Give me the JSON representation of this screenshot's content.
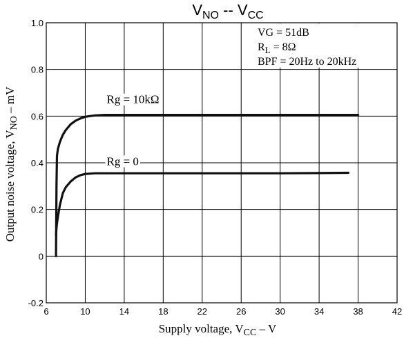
{
  "chart_data": {
    "type": "line",
    "title": {
      "main": "V",
      "sub1": "NO",
      "sep": " -- ",
      "main2": "V",
      "sub2": "CC"
    },
    "xlabel": {
      "main": "Supply voltage, V",
      "sub": "CC",
      "suffix": " – V"
    },
    "ylabel": {
      "main": "Output noise voltage, V",
      "sub": "NO",
      "suffix": " – mV"
    },
    "xlim": [
      6,
      42
    ],
    "ylim": [
      -0.2,
      1.0
    ],
    "x_ticks": [
      6,
      10,
      14,
      18,
      22,
      26,
      30,
      34,
      38,
      42
    ],
    "x_tick_labels": [
      "6",
      "10",
      "14",
      "18",
      "22",
      "26",
      "30",
      "34",
      "38",
      "42"
    ],
    "y_ticks": [
      -0.2,
      0,
      0.2,
      0.4,
      0.6,
      0.8,
      1.0
    ],
    "y_tick_labels": [
      "-0.2",
      "0",
      "0.2",
      "0.4",
      "0.6",
      "0.8",
      "1.0"
    ],
    "grid": true,
    "conditions": [
      {
        "main": "VG = 51dB",
        "sub": "",
        "suffix": ""
      },
      {
        "main": "R",
        "sub": "L",
        "suffix": " = 8Ω"
      },
      {
        "main": "BPF = 20Hz to 20kHz",
        "sub": "",
        "suffix": ""
      }
    ],
    "series": [
      {
        "name": "Rg = 10kΩ",
        "label_x": 12.2,
        "label_y": 0.655,
        "x": [
          7.0,
          7.05,
          7.1,
          7.2,
          7.4,
          7.7,
          8.0,
          8.5,
          9.0,
          9.5,
          10.0,
          11.0,
          12.0,
          14.0,
          18.0,
          22.0,
          26.0,
          30.0,
          34.0,
          38.0
        ],
        "y": [
          0.0,
          0.3,
          0.43,
          0.46,
          0.49,
          0.52,
          0.54,
          0.565,
          0.58,
          0.59,
          0.597,
          0.603,
          0.605,
          0.605,
          0.605,
          0.605,
          0.605,
          0.605,
          0.605,
          0.605
        ]
      },
      {
        "name": "Rg = 0",
        "label_x": 12.2,
        "label_y": 0.39,
        "x": [
          7.0,
          7.05,
          7.1,
          7.2,
          7.4,
          7.7,
          8.0,
          8.5,
          9.0,
          9.5,
          10.0,
          11.0,
          12.0,
          14.0,
          18.0,
          22.0,
          26.0,
          30.0,
          34.0,
          37.0
        ],
        "y": [
          0.09,
          0.12,
          0.14,
          0.17,
          0.22,
          0.27,
          0.295,
          0.32,
          0.337,
          0.347,
          0.352,
          0.355,
          0.355,
          0.355,
          0.355,
          0.355,
          0.355,
          0.355,
          0.356,
          0.357
        ]
      }
    ]
  }
}
